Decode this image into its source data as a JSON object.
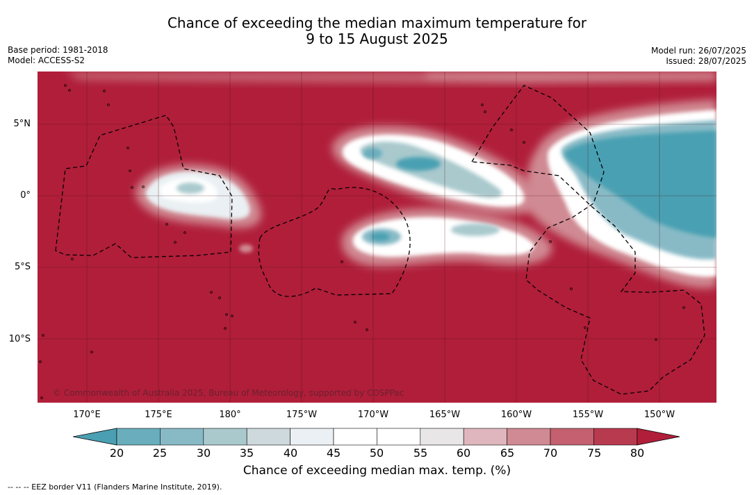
{
  "title": {
    "line1": "Chance of exceeding the median maximum temperature for",
    "line2": "9 to 15 August 2025"
  },
  "meta": {
    "base_period": "Base period: 1981-2018",
    "model": "Model: ACCESS-S2",
    "model_run": "Model run: 26/07/2025",
    "issued": "Issued: 28/07/2025"
  },
  "axes": {
    "lat_labels": [
      "5°N",
      "0°",
      "5°S",
      "10°S"
    ],
    "lon_labels": [
      "170°E",
      "175°E",
      "180°",
      "175°W",
      "170°W",
      "165°W",
      "160°W",
      "155°W",
      "150°W"
    ]
  },
  "colorbar": {
    "labels": [
      "20",
      "25",
      "30",
      "35",
      "40",
      "45",
      "50",
      "55",
      "60",
      "65",
      "70",
      "75",
      "80"
    ],
    "colors": [
      "#4aa0b2",
      "#6aaebd",
      "#88bac6",
      "#a9c9cd",
      "#cdd9dc",
      "#eaf0f3",
      "#ffffff",
      "#ffffff",
      "#e8e6e7",
      "#dfb6bd",
      "#d08a93",
      "#c4606f",
      "#b83a4f",
      "#b01e3a"
    ],
    "title": "Chance of exceeding median max. temp. (%)"
  },
  "map": {
    "background_color": "#b01e3a",
    "copyright": "© Commonwealth of Australia 2025, Bureau of Meteorology, supported by COSPPac"
  },
  "footnote": "--  --  -- EEZ border V11 (Flanders Marine Institute, 2019)."
}
